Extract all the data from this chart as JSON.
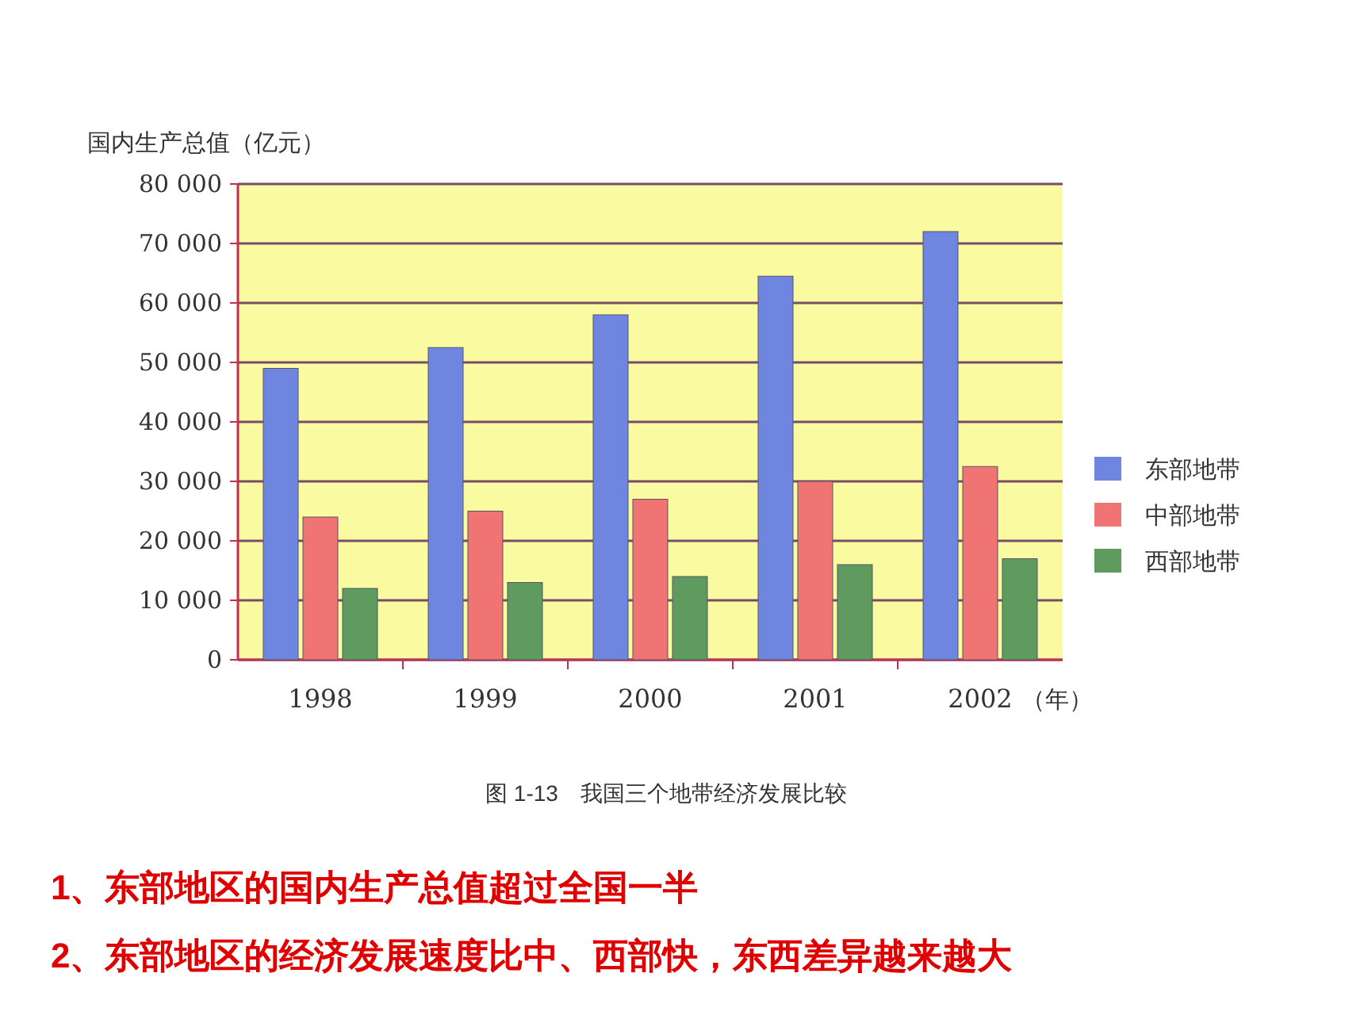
{
  "chart_data": {
    "type": "bar",
    "title": "图 1-13　我国三个地带经济发展比较",
    "ylabel": "国内生产总值（亿元）",
    "xlabel": "（年）",
    "categories": [
      "1998",
      "1999",
      "2000",
      "2001",
      "2002"
    ],
    "series": [
      {
        "name": "东部地带",
        "color": "#6f86e0",
        "values": [
          49000,
          52500,
          58000,
          64500,
          72000
        ]
      },
      {
        "name": "中部地带",
        "color": "#f07474",
        "values": [
          24000,
          25000,
          27000,
          30000,
          32500
        ]
      },
      {
        "name": "西部地带",
        "color": "#5f9a5f",
        "values": [
          12000,
          13000,
          14000,
          16000,
          17000
        ]
      }
    ],
    "ylim": [
      0,
      80000
    ],
    "yticks": [
      0,
      {
        "value": 10000,
        "label": "10 000"
      },
      {
        "value": 20000,
        "label": "20 000"
      },
      {
        "value": 30000,
        "label": "30 000"
      },
      {
        "value": 40000,
        "label": "40 000"
      },
      {
        "value": 50000,
        "label": "50 000"
      },
      {
        "value": 60000,
        "label": "60 000"
      },
      {
        "value": 70000,
        "label": "70 000"
      },
      {
        "value": 80000,
        "label": "80 000"
      }
    ],
    "grid": "y",
    "legend": "right",
    "annotations": [
      "1、东部地区的国内生产总值超过全国一半",
      "2、东部地区的经济发展速度比中、西部快，东西差异越来越大"
    ]
  }
}
